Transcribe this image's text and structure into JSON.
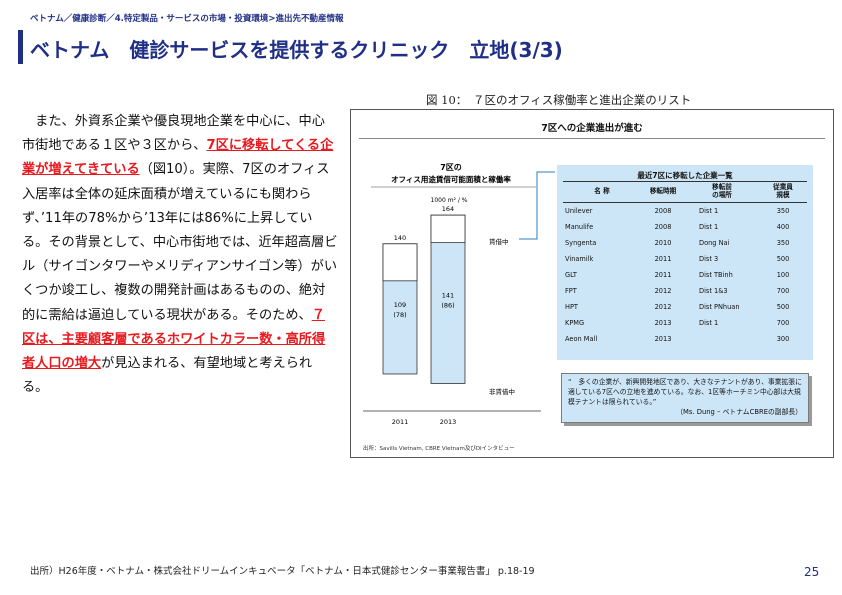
{
  "header": {
    "breadcrumb": "ベトナム／健康診断／4.特定製品・サービスの市場・投資環境>進出先不動産情報",
    "title": "ベトナム　健診サービスを提供するクリニック　立地(3/3)"
  },
  "body": {
    "p1": "　また、外資系企業や優良現地企業を中心に、中心市街地である１区や３区から、",
    "h1": "7区に移転してくる企業が増えてきている",
    "p2": "（図10）。実際、7区のオフィス入居率は全体の延床面積が増えているにも関わらず、’11年の78%から’13年には86%に上昇している。その背景として、中心市街地では、近年超高層ビル（サイゴンタワーやメリディアンサイゴン等）がいくつか竣工し、複数の開発計画はあるものの、絶対的に需給は逼迫している現状がある。そのため、",
    "h2": "７区は、主要顧客層であるホワイトカラー数・高所得者人口の増大",
    "p3": "が見込まれる、有望地域と考えられる。"
  },
  "figure": {
    "caption": "図 10：　７区のオフィス稼働率と進出企業のリスト",
    "heading": "7区への企業進出が進む",
    "source": "出所：Savills Vietnam, CBRE Vietnam及びDIインタビュー"
  },
  "chart_data": {
    "type": "bar",
    "title_line1": "7区の",
    "title_line2": "オフィス用途賃借可能面積と稼働率",
    "unit": "1000 m² / %",
    "categories": [
      "2011",
      "2013"
    ],
    "totals": [
      140,
      164
    ],
    "leased": [
      109,
      141
    ],
    "leased_label": [
      "109",
      "141"
    ],
    "occupancy_label": [
      "(78)",
      "(86)"
    ],
    "legend_leased": "賃借中",
    "legend_vacant": "非賃借中",
    "ymax": 175,
    "colors": {
      "leased": "#cde6f7",
      "vacant": "#ffffff",
      "connector": "#2a7fc0"
    }
  },
  "table": {
    "title": "最近7区に移転した企業一覧",
    "headers": [
      "名 称",
      "移転時期",
      "移転前\nの場所",
      "従業員\n規模"
    ],
    "rows": [
      [
        "Unilever",
        "2008",
        "Dist 1",
        "350"
      ],
      [
        "Manulife",
        "2008",
        "Dist 1",
        "400"
      ],
      [
        "Syngenta",
        "2010",
        "Dong Nai",
        "350"
      ],
      [
        "Vinamilk",
        "2011",
        "Dist 3",
        "500"
      ],
      [
        "GLT",
        "2011",
        "Dist TBinh",
        "100"
      ],
      [
        "FPT",
        "2012",
        "Dist 1&3",
        "700"
      ],
      [
        "HPT",
        "2012",
        "Dist PNhuan",
        "500"
      ],
      [
        "KPMG",
        "2013",
        "Dist 1",
        "700"
      ],
      [
        "Aeon Mall",
        "2013",
        "",
        "300"
      ]
    ]
  },
  "quote": {
    "text": "“　多くの企業が、新興開発地区であり、大きなテナントがあり、事業拡張に適している7区への立地を進めている。なお、1区等ホーチミン中心部は大規模テナントは限られている。”",
    "attribution": "（Ms. Dung – ベトナムCBREの副部長）"
  },
  "footer": {
    "source": "出所）H26年度・ベトナム・株式会社ドリームインキュベータ「ベトナム・日本式健診センター事業報告書」 p.18-19",
    "page": "25"
  }
}
